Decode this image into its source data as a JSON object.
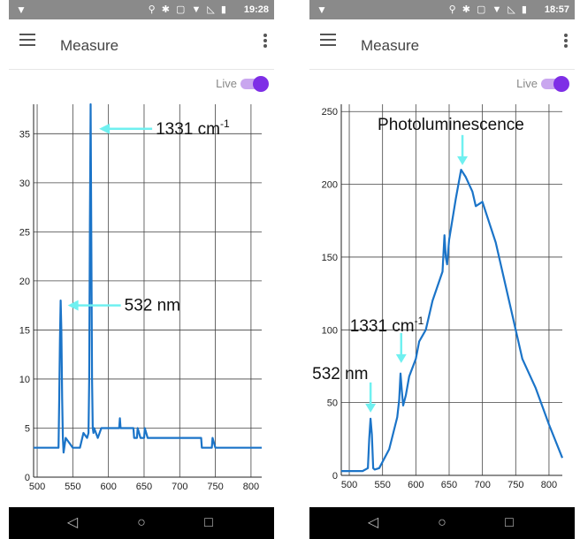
{
  "left_phone": {
    "status": {
      "time": "19:28",
      "icons": "⚲ ✱ ▢ ▼ ◺ ▮"
    },
    "title": "Measure",
    "live_label": "Live",
    "live_on": true
  },
  "right_phone": {
    "status": {
      "time": "18:57",
      "icons": "⚲ ✱ ▢ ▼ ◺ ▮"
    },
    "title": "Measure",
    "live_label": "Live",
    "live_on": true
  },
  "colors": {
    "line": "#1b74c8",
    "arrow": "#6ff0f0",
    "accent": "#7e2ee6"
  },
  "chart_data": [
    {
      "type": "line",
      "xlabel": "",
      "ylabel": "",
      "xlim": [
        495,
        815
      ],
      "ylim": [
        0,
        38
      ],
      "xticks": [
        500,
        550,
        600,
        650,
        700,
        750,
        800
      ],
      "yticks": [
        0,
        5,
        10,
        15,
        20,
        25,
        30,
        35
      ],
      "series": [
        {
          "x": [
            495,
            530,
            531,
            532,
            533,
            534,
            535,
            536,
            537,
            538,
            540,
            545,
            550,
            555,
            560,
            565,
            570,
            572,
            573,
            574,
            575,
            576,
            577,
            578,
            579,
            580,
            585,
            590,
            595,
            600,
            605,
            610,
            615,
            616,
            617,
            618,
            620,
            625,
            630,
            635,
            636,
            640,
            641,
            645,
            650,
            651,
            655,
            660,
            700,
            720,
            730,
            731,
            745,
            746,
            750,
            760,
            800,
            815
          ],
          "y": [
            3,
            3,
            8,
            14,
            18,
            15,
            8,
            4,
            2.5,
            3,
            4,
            3.5,
            3,
            3,
            3,
            4.5,
            4,
            4.5,
            10,
            26,
            38,
            24,
            10,
            5,
            4.5,
            5,
            4,
            5,
            5,
            5,
            5,
            5,
            5,
            6,
            5,
            5,
            5,
            5,
            5,
            5,
            4,
            4,
            5,
            4,
            4,
            5,
            4,
            4,
            4,
            4,
            4,
            3,
            3,
            4,
            3,
            3,
            3,
            3
          ]
        }
      ],
      "annotations": [
        {
          "text": "1331 cm",
          "sup": "-1",
          "x": 577,
          "y": 35.5
        },
        {
          "text": "532 nm",
          "x": 533,
          "y": 17.5
        }
      ]
    },
    {
      "type": "line",
      "xlabel": "",
      "ylabel": "",
      "xlim": [
        488,
        820
      ],
      "ylim": [
        0,
        255
      ],
      "xticks": [
        500,
        550,
        600,
        650,
        700,
        750,
        800
      ],
      "yticks": [
        0,
        50,
        100,
        150,
        200,
        250
      ],
      "series": [
        {
          "x": [
            488,
            520,
            528,
            530,
            532,
            534,
            536,
            538,
            545,
            560,
            572,
            575,
            577,
            579,
            581,
            585,
            590,
            600,
            605,
            615,
            625,
            640,
            643,
            645,
            647,
            650,
            660,
            668,
            675,
            685,
            690,
            700,
            720,
            745,
            760,
            780,
            800,
            820
          ],
          "y": [
            3,
            3,
            5,
            25,
            39,
            28,
            5,
            4,
            5,
            18,
            40,
            52,
            70,
            58,
            48,
            55,
            68,
            80,
            92,
            100,
            120,
            140,
            165,
            150,
            145,
            162,
            190,
            210,
            205,
            195,
            185,
            188,
            160,
            110,
            80,
            60,
            35,
            12
          ]
        }
      ],
      "annotations": [
        {
          "text": "Photoluminescence",
          "x": 670,
          "y": 212
        },
        {
          "text": "1331 cm",
          "sup": "-1",
          "x": 578,
          "y": 76
        },
        {
          "text": "532 nm",
          "x": 532,
          "y": 42
        }
      ]
    }
  ]
}
